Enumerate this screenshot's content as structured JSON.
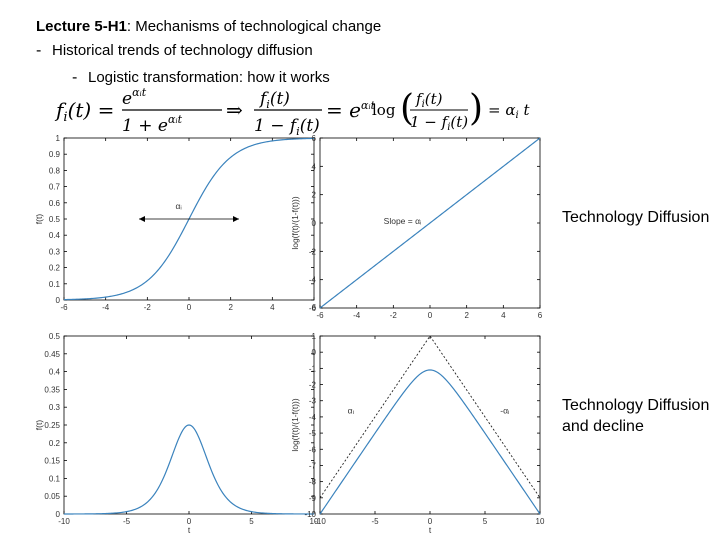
{
  "header": {
    "title_bold": "Lecture 5-H1",
    "title_rest": ": Mechanisms of technological change",
    "bullet1": "Historical trends of technology diffusion",
    "bullet2": "Logistic transformation: how it works"
  },
  "formulas": {
    "left": "fᵢ(t) = e^(αᵢt) / (1 + e^(αᵢt)) ⇒ fᵢ(t) / (1 − fᵢ(t)) = e^(αᵢt)",
    "right": "log( fᵢ(t) / (1 − fᵢ(t)) ) = αᵢt"
  },
  "side_labels": {
    "top": "Technology Diffusion",
    "bottom": "Technology Diffusion and decline"
  },
  "chart_data": [
    {
      "type": "line",
      "xlim": [
        -6,
        6
      ],
      "ylim": [
        0,
        1
      ],
      "xticks": [
        "-6",
        "-4",
        "-2",
        "0",
        "2",
        "4",
        "6"
      ],
      "yticks": [
        "0",
        "0.1",
        "0.2",
        "0.3",
        "0.4",
        "0.5",
        "0.6",
        "0.7",
        "0.8",
        "0.9",
        "1"
      ],
      "ylabel": "f(t)",
      "annotation": "αᵢ",
      "function": "logistic",
      "series": [
        {
          "x": [
            -6,
            -5,
            -4,
            -3,
            -2,
            -1,
            0,
            1,
            2,
            3,
            4,
            5,
            6
          ],
          "y": [
            0.002,
            0.007,
            0.018,
            0.047,
            0.119,
            0.269,
            0.5,
            0.731,
            0.881,
            0.953,
            0.982,
            0.993,
            0.998
          ]
        }
      ]
    },
    {
      "type": "line",
      "xlim": [
        -6,
        6
      ],
      "ylim": [
        -6,
        6
      ],
      "xticks": [
        "-6",
        "-4",
        "-2",
        "0",
        "2",
        "4",
        "6"
      ],
      "yticks": [
        "-6",
        "-4",
        "-2",
        "0",
        "2",
        "4",
        "6"
      ],
      "ylabel": "log(f(t)/(1-f(t)))",
      "annotation": "Slope = αᵢ",
      "function": "linear",
      "series": [
        {
          "x": [
            -6,
            6
          ],
          "y": [
            -6,
            6
          ]
        }
      ]
    },
    {
      "type": "line",
      "xlim": [
        -10,
        10
      ],
      "ylim": [
        0,
        0.5
      ],
      "xticks": [
        "-10",
        "-5",
        "0",
        "5",
        "10"
      ],
      "yticks": [
        "0",
        "0.05",
        "0.1",
        "0.15",
        "0.2",
        "0.25",
        "0.3",
        "0.35",
        "0.4",
        "0.45",
        "0.5"
      ],
      "xlabel": "t",
      "ylabel": "f(t)",
      "function": "bell",
      "series": [
        {
          "x": [
            -10,
            -5,
            -2,
            -1,
            0,
            1,
            2,
            5,
            10
          ],
          "y": [
            0.0,
            0.007,
            0.105,
            0.197,
            0.25,
            0.197,
            0.105,
            0.007,
            0.0
          ]
        }
      ]
    },
    {
      "type": "line",
      "xlim": [
        -10,
        10
      ],
      "ylim": [
        -10,
        1
      ],
      "xticks": [
        "-10",
        "-5",
        "0",
        "5",
        "10"
      ],
      "yticks": [
        "1",
        "0",
        "-1",
        "-2",
        "-3",
        "-4",
        "-5",
        "-6",
        "-7",
        "-8",
        "-9",
        "-10"
      ],
      "xlabel": "t",
      "ylabel": "log(f(t)/(1-f(t)))",
      "annotation_left": "αᵢ",
      "annotation_right": "-αᵢ",
      "function": "tent",
      "series": [
        {
          "x": [
            -10,
            -5,
            -2,
            0,
            2,
            5,
            10
          ],
          "y": [
            -9.3,
            -4.3,
            -1.6,
            -0.3,
            -1.6,
            -4.3,
            -9.3
          ]
        },
        {
          "x": [
            -10,
            0,
            10
          ],
          "y": [
            -9,
            1,
            -9
          ]
        }
      ]
    }
  ]
}
